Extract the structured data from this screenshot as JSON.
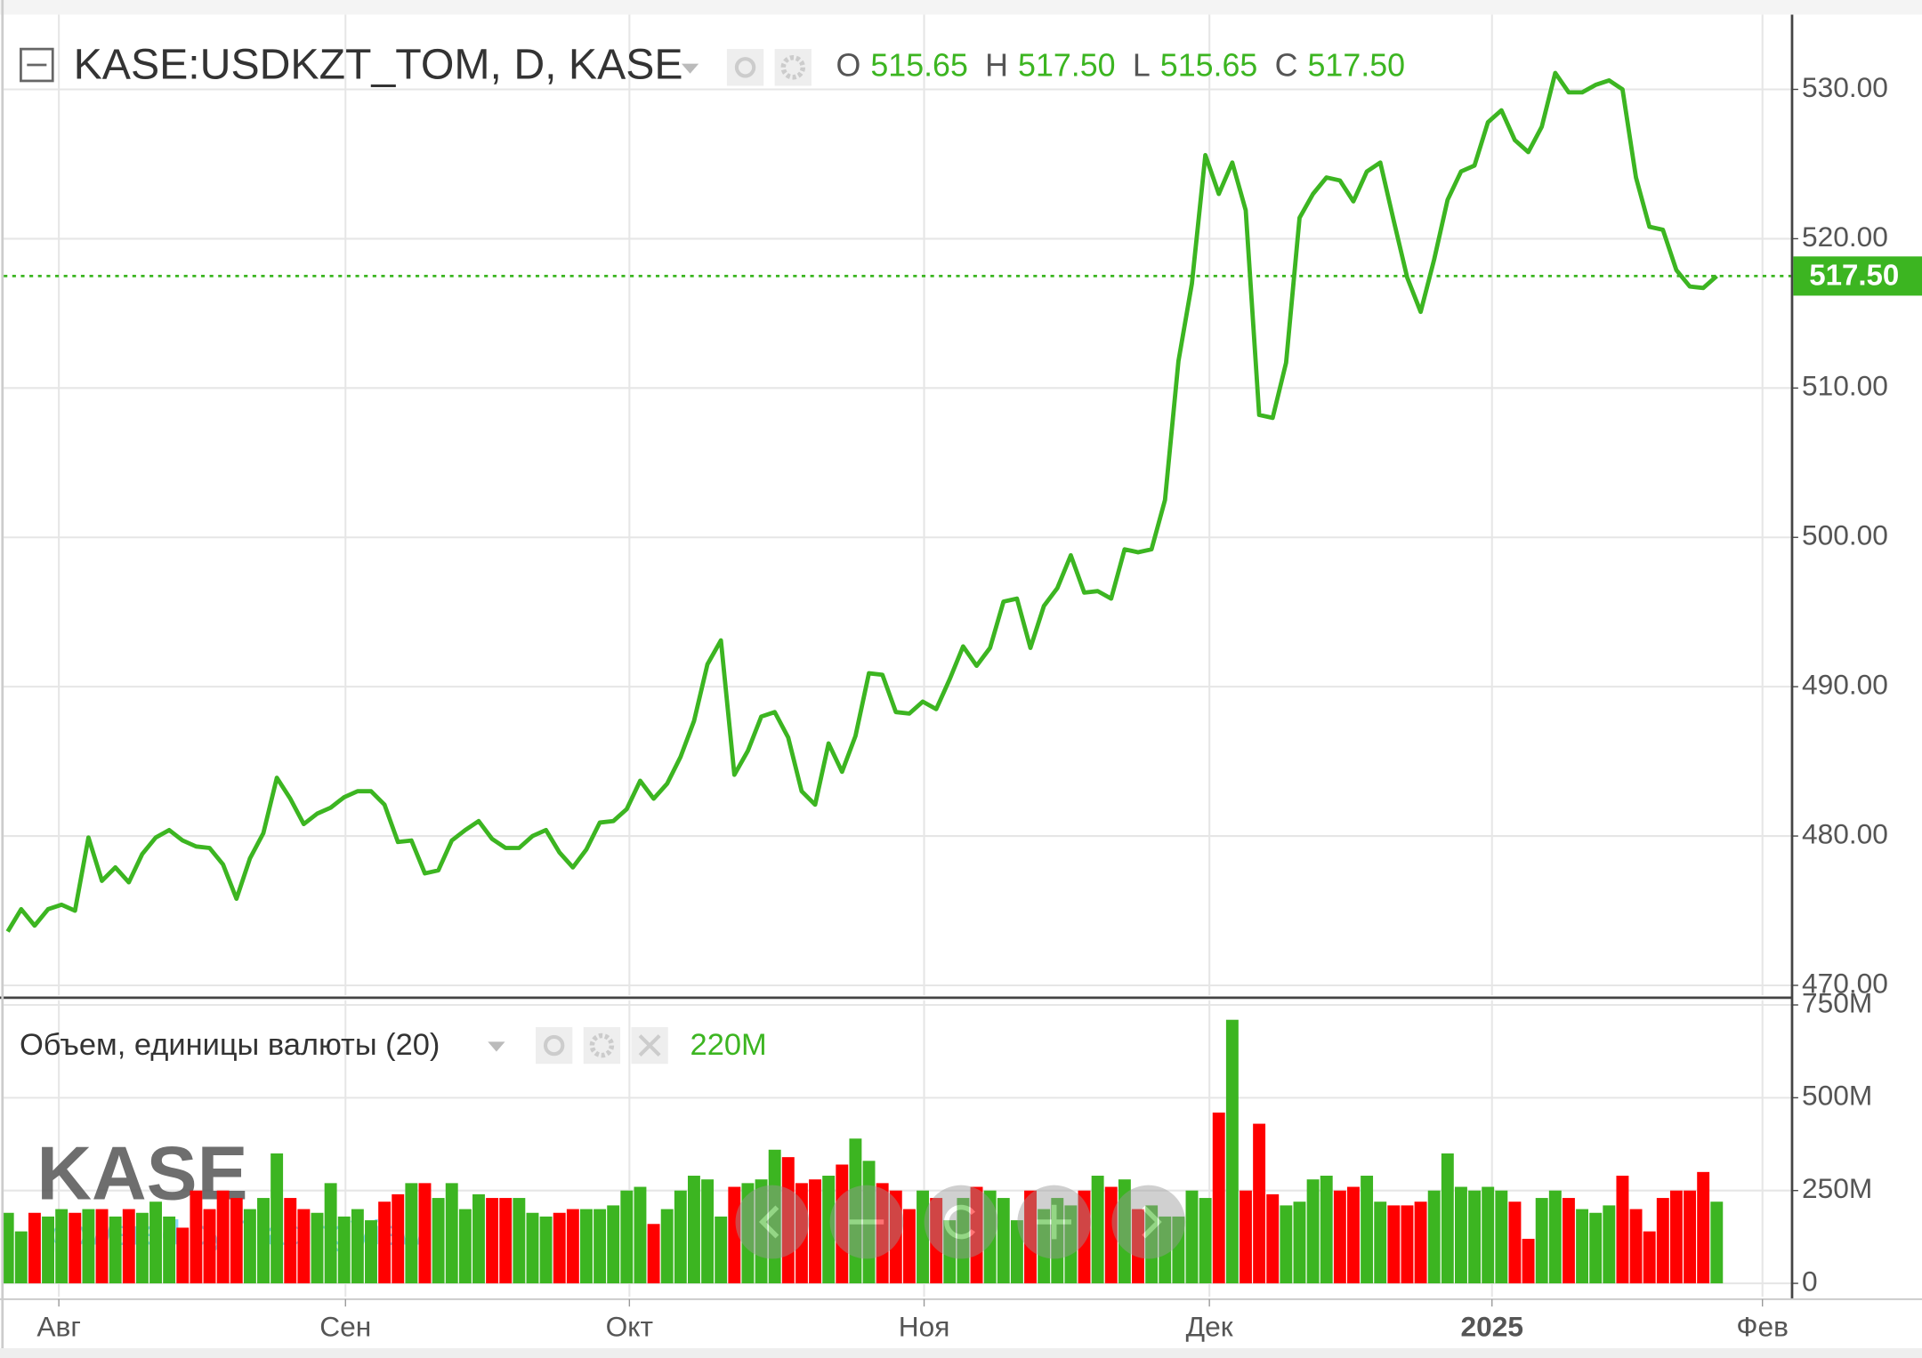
{
  "chart_data": [
    {
      "type": "line",
      "title": "KASE:USDKZT_TOM, D, KASE",
      "ohlc": [
        {
          "label": "O",
          "value": "515.65"
        },
        {
          "label": "H",
          "value": "517.50"
        },
        {
          "label": "L",
          "value": "515.65"
        },
        {
          "label": "C",
          "value": "517.50"
        }
      ],
      "last_label": "517.50",
      "color": "#3cb521",
      "grid": true,
      "values": [
        473.6,
        475.1,
        474.0,
        475.1,
        475.4,
        475.0,
        479.9,
        477.0,
        477.9,
        476.9,
        478.8,
        479.9,
        480.4,
        479.7,
        479.3,
        479.2,
        478.1,
        475.8,
        478.5,
        480.2,
        483.9,
        482.5,
        480.8,
        481.5,
        481.9,
        482.6,
        483.0,
        483.0,
        482.1,
        479.6,
        479.7,
        477.5,
        477.7,
        479.7,
        480.4,
        481.0,
        479.8,
        479.2,
        479.2,
        480.0,
        480.4,
        478.9,
        477.9,
        479.1,
        480.9,
        481.0,
        481.8,
        483.7,
        482.5,
        483.5,
        485.3,
        487.7,
        491.5,
        493.1,
        484.1,
        485.7,
        488.0,
        488.3,
        486.6,
        483.0,
        482.1,
        486.2,
        484.3,
        486.7,
        490.9,
        490.8,
        488.3,
        488.2,
        489.0,
        488.5,
        490.5,
        492.7,
        491.4,
        492.6,
        495.7,
        495.9,
        492.6,
        495.4,
        496.6,
        498.8,
        496.3,
        496.4,
        495.9,
        499.2,
        499.0,
        499.2,
        502.5,
        511.8,
        517.0,
        525.6,
        523.0,
        525.1,
        521.9,
        508.2,
        508.0,
        511.7,
        521.4,
        523.0,
        524.1,
        523.9,
        522.5,
        524.5,
        525.1,
        521.2,
        517.4,
        515.1,
        518.6,
        522.6,
        524.5,
        524.9,
        527.8,
        528.6,
        526.6,
        525.8,
        527.5,
        531.1,
        529.8,
        529.8,
        530.3,
        530.6,
        530.0,
        524.1,
        520.8,
        520.6,
        517.9,
        516.8,
        516.7,
        517.5
      ],
      "xlim": [
        -0.3,
        132.6
      ],
      "xticks": [
        {
          "value": 3.8,
          "label": "Авг"
        },
        {
          "value": 25.1,
          "label": "Сен"
        },
        {
          "value": 46.2,
          "label": "Окт"
        },
        {
          "value": 68.1,
          "label": "Ноя"
        },
        {
          "value": 89.3,
          "label": "Дек"
        },
        {
          "value": 110.3,
          "label": "2025",
          "bold": true
        },
        {
          "value": 130.4,
          "label": "Фев"
        }
      ],
      "ylim": [
        469.34,
        535.0
      ],
      "yticks": [
        {
          "value": 470,
          "label": "470.00"
        },
        {
          "value": 480,
          "label": "480.00"
        },
        {
          "value": 490,
          "label": "490.00"
        },
        {
          "value": 500,
          "label": "500.00"
        },
        {
          "value": 510,
          "label": "510.00"
        },
        {
          "value": 520,
          "label": "520.00"
        },
        {
          "value": 530,
          "label": "530.00"
        }
      ]
    },
    {
      "type": "bar",
      "title": "Объем, единицы валюты (20)",
      "last_label": "220M",
      "up_color": "#3cb521",
      "down_color": "#ff0000",
      "grid": true,
      "values": [
        190000000.0,
        140000000.0,
        190000000.0,
        180000000.0,
        200000000.0,
        190000000.0,
        200000000.0,
        200000000.0,
        180000000.0,
        200000000.0,
        190000000.0,
        220000000.0,
        180000000.0,
        150000000.0,
        250000000.0,
        200000000.0,
        250000000.0,
        230000000.0,
        200000000.0,
        230000000.0,
        350000000.0,
        230000000.0,
        200000000.0,
        190000000.0,
        270000000.0,
        180000000.0,
        200000000.0,
        170000000.0,
        220000000.0,
        240000000.0,
        270000000.0,
        270000000.0,
        230000000.0,
        270000000.0,
        200000000.0,
        240000000.0,
        230000000.0,
        230000000.0,
        230000000.0,
        190000000.0,
        180000000.0,
        190000000.0,
        200000000.0,
        200000000.0,
        200000000.0,
        210000000.0,
        250000000.0,
        260000000.0,
        160000000.0,
        200000000.0,
        250000000.0,
        290000000.0,
        280000000.0,
        180000000.0,
        260000000.0,
        270000000.0,
        280000000.0,
        360000000.0,
        340000000.0,
        270000000.0,
        280000000.0,
        290000000.0,
        320000000.0,
        390000000.0,
        330000000.0,
        270000000.0,
        250000000.0,
        200000000.0,
        250000000.0,
        230000000.0,
        170000000.0,
        230000000.0,
        260000000.0,
        250000000.0,
        230000000.0,
        170000000.0,
        250000000.0,
        200000000.0,
        230000000.0,
        210000000.0,
        250000000.0,
        290000000.0,
        260000000.0,
        280000000.0,
        200000000.0,
        210000000.0,
        180000000.0,
        180000000.0,
        250000000.0,
        230000000.0,
        460000000.0,
        710000000.0,
        250000000.0,
        430000000.0,
        240000000.0,
        210000000.0,
        220000000.0,
        280000000.0,
        290000000.0,
        250000000.0,
        260000000.0,
        290000000.0,
        220000000.0,
        210000000.0,
        210000000.0,
        220000000.0,
        250000000.0,
        350000000.0,
        260000000.0,
        250000000.0,
        260000000.0,
        250000000.0,
        220000000.0,
        120000000.0,
        230000000.0,
        250000000.0,
        230000000.0,
        200000000.0,
        190000000.0,
        210000000.0,
        290000000.0,
        200000000.0,
        140000000.0,
        230000000.0,
        250000000.0,
        250000000.0,
        300000000.0,
        220000000.0
      ],
      "ylim": [
        -36000000.0,
        763000000.0
      ],
      "yticks": [
        0,
        {
          "value": 250000000.0,
          "label": "250M"
        },
        {
          "value": 500000000.0,
          "label": "500M"
        },
        {
          "value": 750000000.0,
          "label": "750M"
        }
      ]
    }
  ],
  "watermark": {
    "logo": "KASE",
    "powered": "powered by TradingView"
  }
}
